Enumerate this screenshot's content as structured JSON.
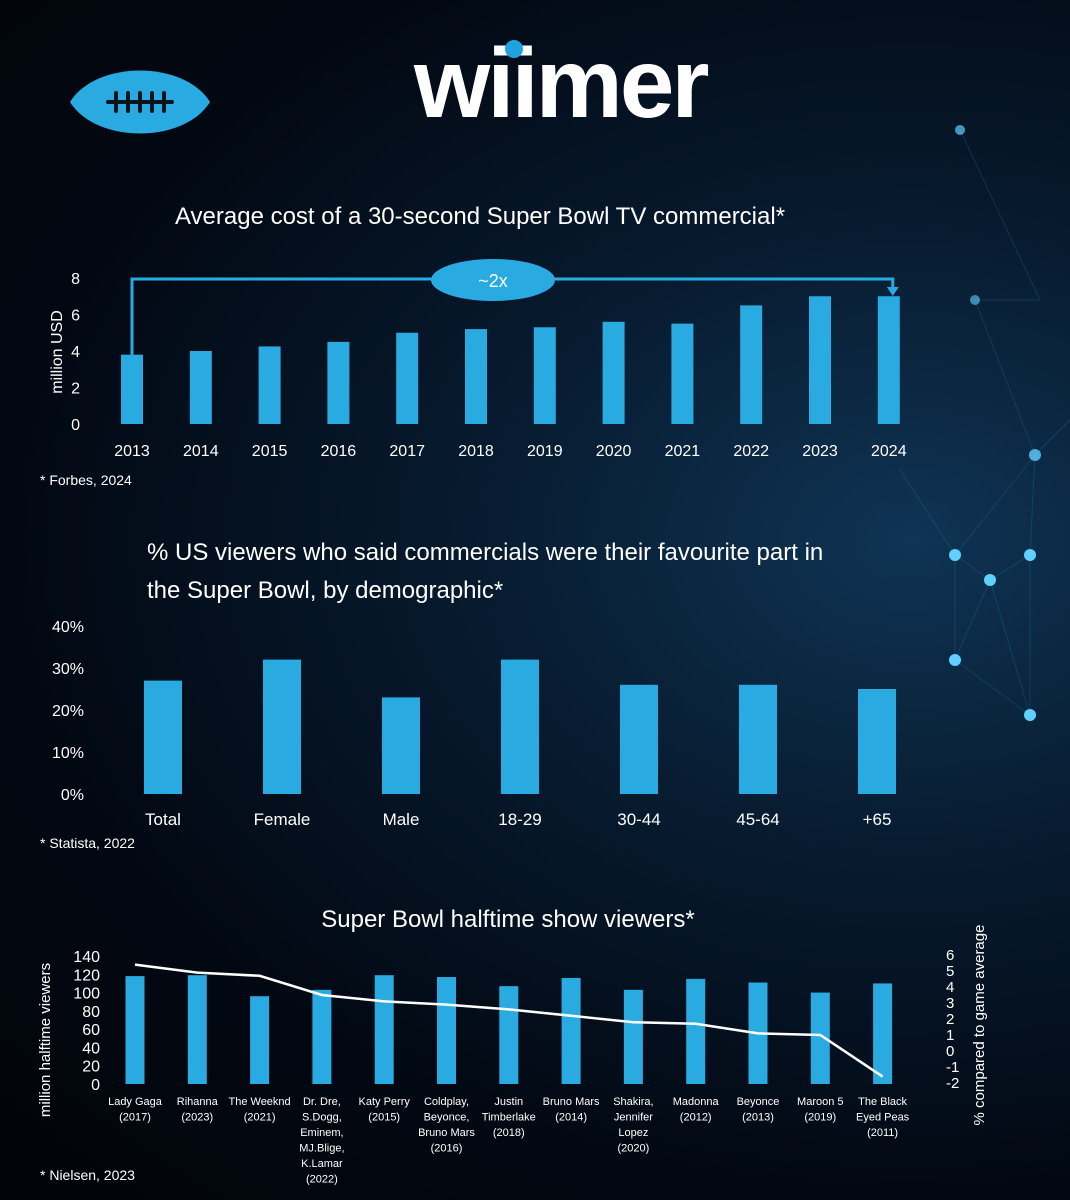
{
  "brand": {
    "name": "wiimer",
    "logo_icon": "football-icon",
    "accent": "#29abe2"
  },
  "colors": {
    "bar": "#29abe2",
    "line": "#ffffff",
    "text": "#ffffff"
  },
  "chart_data": [
    {
      "type": "bar",
      "title": "Average cost of a 30-second Super Bowl TV commercial*",
      "ylabel": "million USD",
      "xlabel": "",
      "categories": [
        "2013",
        "2014",
        "2015",
        "2016",
        "2017",
        "2018",
        "2019",
        "2020",
        "2021",
        "2022",
        "2023",
        "2024"
      ],
      "values": [
        3.8,
        4.0,
        4.25,
        4.5,
        5.0,
        5.2,
        5.3,
        5.6,
        5.5,
        6.5,
        7.0,
        7.0
      ],
      "ylim": [
        0,
        8
      ],
      "yticks": [
        "0",
        "2",
        "4",
        "6",
        "8"
      ],
      "annotation": "~2x",
      "source": "* Forbes, 2024",
      "grid": false
    },
    {
      "type": "bar",
      "title_lines": [
        "% US viewers who said commercials were their favourite part in",
        "the Super Bowl, by demographic*"
      ],
      "categories": [
        "Total",
        "Female",
        "Male",
        "18-29",
        "30-44",
        "45-64",
        "+65"
      ],
      "values": [
        27,
        32,
        23,
        32,
        26,
        26,
        25
      ],
      "ylim": [
        0,
        40
      ],
      "yticks": [
        "0%",
        "10%",
        "20%",
        "30%",
        "40%"
      ],
      "source": "* Statista, 2022",
      "grid": false
    },
    {
      "type": "bar",
      "title": "Super Bowl halftime show viewers*",
      "ylabel": "million halftime viewers",
      "y2label": "% compared to game average",
      "categories": [
        [
          "Lady Gaga",
          "(2017)"
        ],
        [
          "Rihanna",
          "(2023)"
        ],
        [
          "The Weeknd",
          "(2021)"
        ],
        [
          "Dr. Dre,",
          "S.Dogg,",
          "Eminem,",
          "MJ.Blige,",
          "K.Lamar",
          "(2022)"
        ],
        [
          "Katy Perry",
          "(2015)"
        ],
        [
          "Coldplay,",
          "Beyonce,",
          "Bruno Mars",
          "(2016)"
        ],
        [
          "Justin",
          "Timberlake",
          "(2018)"
        ],
        [
          "Bruno Mars",
          "(2014)"
        ],
        [
          "Shakira,",
          "Jennifer",
          "Lopez",
          "(2020)"
        ],
        [
          "Madonna",
          "(2012)"
        ],
        [
          "Beyonce",
          "(2013)"
        ],
        [
          "Maroon 5",
          "(2019)"
        ],
        [
          "The Black",
          "Eyed Peas",
          "(2011)"
        ]
      ],
      "values": [
        118,
        119,
        96,
        103,
        119,
        117,
        107,
        116,
        103,
        115,
        111,
        100,
        110
      ],
      "ylim": [
        0,
        140
      ],
      "yticks": [
        "0",
        "20",
        "40",
        "60",
        "80",
        "100",
        "120",
        "140"
      ],
      "series2": {
        "values": [
          5.4,
          4.9,
          4.7,
          3.5,
          3.1,
          2.9,
          2.6,
          2.2,
          1.8,
          1.7,
          1.1,
          1.0,
          -1.6
        ]
      },
      "y2lim": [
        -2,
        6
      ],
      "y2ticks": [
        "-2",
        "-1",
        "0",
        "1",
        "2",
        "3",
        "4",
        "5",
        "6"
      ],
      "source": "* Nielsen, 2023",
      "grid": false
    }
  ]
}
